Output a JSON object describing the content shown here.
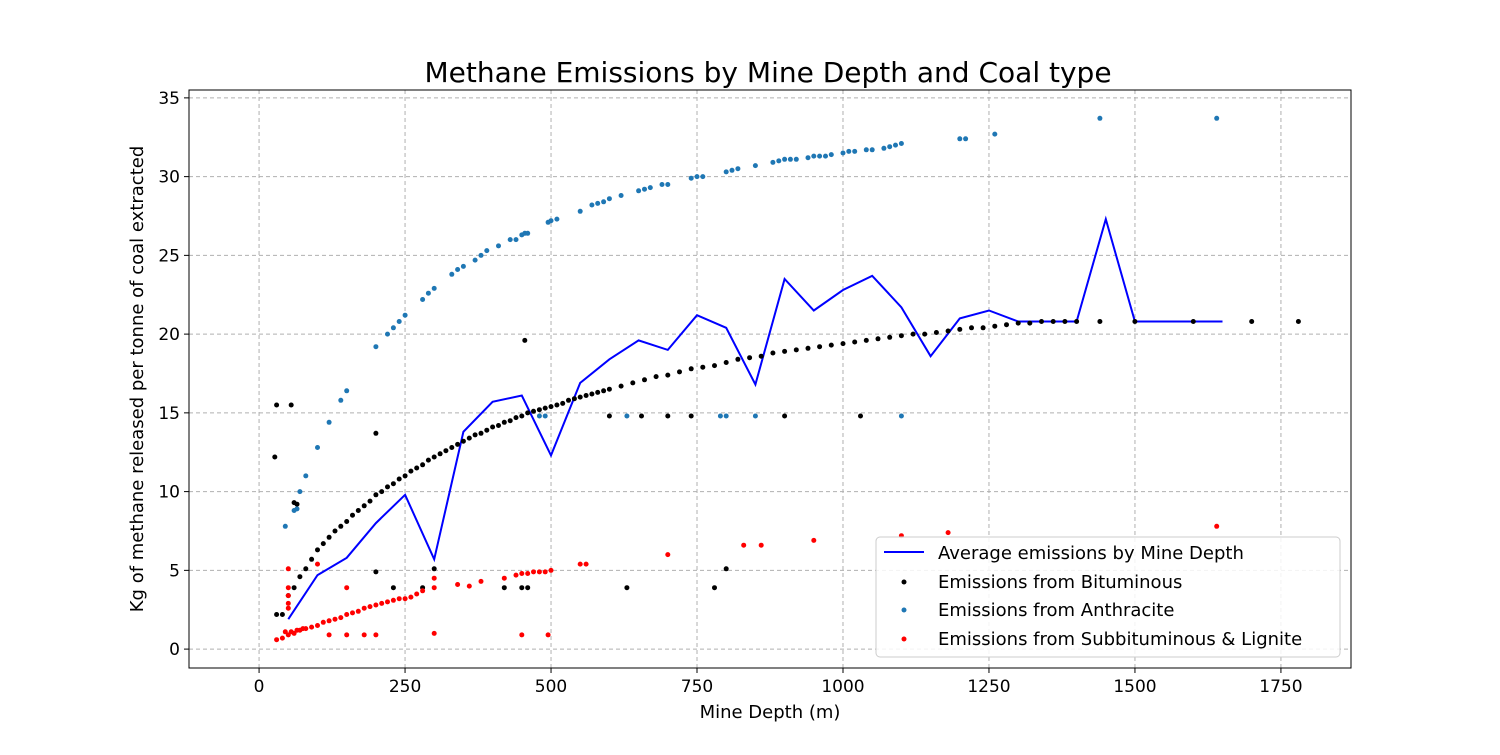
{
  "chart_data": {
    "type": "scatter",
    "title": "Methane Emissions by Mine Depth and Coal type",
    "xlabel": "Mine Depth (m)",
    "ylabel": "Kg of methane released per tonne of coal extracted",
    "xlim": [
      -120,
      1870
    ],
    "ylim": [
      -1.2,
      35.5
    ],
    "xticks": [
      0,
      250,
      500,
      750,
      1000,
      1250,
      1500,
      1750
    ],
    "yticks": [
      0,
      5,
      10,
      15,
      20,
      25,
      30,
      35
    ],
    "grid": true,
    "legend_position": "lower-right",
    "series": [
      {
        "name": "Average emissions by Mine Depth",
        "type": "line",
        "color": "#0000ff",
        "x": [
          50,
          100,
          150,
          200,
          250,
          300,
          350,
          400,
          450,
          500,
          550,
          600,
          650,
          700,
          750,
          800,
          850,
          900,
          950,
          1000,
          1050,
          1100,
          1150,
          1200,
          1250,
          1300,
          1350,
          1400,
          1450,
          1500,
          1550,
          1600,
          1650
        ],
        "y": [
          1.9,
          4.7,
          5.8,
          8.0,
          9.8,
          5.7,
          13.8,
          15.7,
          16.1,
          12.3,
          16.9,
          18.4,
          19.6,
          19.0,
          21.2,
          20.4,
          16.8,
          23.5,
          21.5,
          22.8,
          23.7,
          21.7,
          18.6,
          21.0,
          21.5,
          20.8,
          20.8,
          20.8,
          27.3,
          20.8,
          20.8,
          20.8,
          20.8
        ]
      },
      {
        "name": "Emissions from Bituminous",
        "type": "scatter",
        "color": "#000000",
        "curve": [
          [
            30,
            2.2
          ],
          [
            40,
            2.2
          ],
          [
            50,
            3.4
          ],
          [
            60,
            3.9
          ],
          [
            70,
            4.6
          ],
          [
            80,
            5.1
          ],
          [
            90,
            5.7
          ],
          [
            100,
            6.3
          ],
          [
            110,
            6.7
          ],
          [
            120,
            7.1
          ],
          [
            130,
            7.5
          ],
          [
            140,
            7.8
          ],
          [
            150,
            8.1
          ],
          [
            160,
            8.5
          ],
          [
            170,
            8.8
          ],
          [
            180,
            9.1
          ],
          [
            190,
            9.4
          ],
          [
            200,
            9.8
          ],
          [
            210,
            10.0
          ],
          [
            220,
            10.3
          ],
          [
            230,
            10.5
          ],
          [
            240,
            10.8
          ],
          [
            250,
            11.0
          ],
          [
            260,
            11.3
          ],
          [
            270,
            11.5
          ],
          [
            280,
            11.7
          ],
          [
            290,
            12.0
          ],
          [
            300,
            12.2
          ],
          [
            310,
            12.4
          ],
          [
            320,
            12.6
          ],
          [
            330,
            12.8
          ],
          [
            340,
            13.0
          ],
          [
            350,
            13.2
          ],
          [
            360,
            13.4
          ],
          [
            370,
            13.6
          ],
          [
            380,
            13.7
          ],
          [
            390,
            13.9
          ],
          [
            400,
            14.1
          ],
          [
            410,
            14.2
          ],
          [
            420,
            14.4
          ],
          [
            430,
            14.5
          ],
          [
            440,
            14.7
          ],
          [
            450,
            14.8
          ],
          [
            460,
            15.0
          ],
          [
            470,
            15.1
          ],
          [
            480,
            15.2
          ],
          [
            490,
            15.3
          ],
          [
            500,
            15.4
          ],
          [
            510,
            15.5
          ],
          [
            520,
            15.6
          ],
          [
            530,
            15.8
          ],
          [
            540,
            15.9
          ],
          [
            550,
            16.0
          ],
          [
            560,
            16.1
          ],
          [
            570,
            16.2
          ],
          [
            580,
            16.3
          ],
          [
            590,
            16.4
          ],
          [
            600,
            16.5
          ],
          [
            620,
            16.7
          ],
          [
            640,
            16.9
          ],
          [
            660,
            17.1
          ],
          [
            680,
            17.3
          ],
          [
            700,
            17.4
          ],
          [
            720,
            17.6
          ],
          [
            740,
            17.8
          ],
          [
            760,
            17.9
          ],
          [
            780,
            18.0
          ],
          [
            800,
            18.2
          ],
          [
            820,
            18.4
          ],
          [
            840,
            18.5
          ],
          [
            860,
            18.6
          ],
          [
            880,
            18.8
          ],
          [
            900,
            18.9
          ],
          [
            920,
            19.0
          ],
          [
            940,
            19.1
          ],
          [
            960,
            19.2
          ],
          [
            980,
            19.3
          ],
          [
            1000,
            19.4
          ],
          [
            1020,
            19.5
          ],
          [
            1040,
            19.6
          ],
          [
            1060,
            19.7
          ],
          [
            1080,
            19.8
          ],
          [
            1100,
            19.9
          ],
          [
            1120,
            20.0
          ],
          [
            1140,
            20.0
          ],
          [
            1160,
            20.1
          ],
          [
            1180,
            20.2
          ],
          [
            1200,
            20.3
          ],
          [
            1220,
            20.4
          ],
          [
            1240,
            20.4
          ],
          [
            1260,
            20.5
          ],
          [
            1280,
            20.6
          ],
          [
            1300,
            20.7
          ],
          [
            1320,
            20.7
          ],
          [
            1340,
            20.8
          ],
          [
            1360,
            20.8
          ],
          [
            1380,
            20.8
          ],
          [
            1400,
            20.8
          ],
          [
            1440,
            20.8
          ],
          [
            1500,
            20.8
          ],
          [
            1600,
            20.8
          ],
          [
            1700,
            20.8
          ],
          [
            1780,
            20.8
          ]
        ],
        "outliers": [
          [
            27,
            12.2
          ],
          [
            30,
            15.5
          ],
          [
            55,
            15.5
          ],
          [
            60,
            9.3
          ],
          [
            65,
            9.2
          ],
          [
            200,
            13.7
          ],
          [
            200,
            4.9
          ],
          [
            230,
            3.9
          ],
          [
            280,
            3.9
          ],
          [
            300,
            5.1
          ],
          [
            420,
            3.9
          ],
          [
            450,
            3.9
          ],
          [
            460,
            3.9
          ],
          [
            455,
            19.6
          ],
          [
            600,
            14.8
          ],
          [
            655,
            14.8
          ],
          [
            700,
            14.8
          ],
          [
            740,
            14.8
          ],
          [
            780,
            3.9
          ],
          [
            800,
            5.1
          ],
          [
            630,
            3.9
          ],
          [
            900,
            14.8
          ],
          [
            1030,
            14.8
          ]
        ]
      },
      {
        "name": "Emissions from Anthracite",
        "type": "scatter",
        "color": "#1f77b4",
        "points": [
          [
            45,
            7.8
          ],
          [
            60,
            8.8
          ],
          [
            65,
            8.9
          ],
          [
            70,
            10.0
          ],
          [
            80,
            11.0
          ],
          [
            100,
            12.8
          ],
          [
            120,
            14.4
          ],
          [
            140,
            15.8
          ],
          [
            150,
            16.4
          ],
          [
            200,
            19.2
          ],
          [
            220,
            20.0
          ],
          [
            230,
            20.4
          ],
          [
            240,
            20.8
          ],
          [
            250,
            21.2
          ],
          [
            280,
            22.2
          ],
          [
            290,
            22.6
          ],
          [
            300,
            22.9
          ],
          [
            330,
            23.8
          ],
          [
            340,
            24.1
          ],
          [
            350,
            24.3
          ],
          [
            370,
            24.7
          ],
          [
            380,
            25.0
          ],
          [
            390,
            25.3
          ],
          [
            410,
            25.6
          ],
          [
            430,
            26.0
          ],
          [
            440,
            26.0
          ],
          [
            450,
            26.3
          ],
          [
            455,
            26.4
          ],
          [
            460,
            26.4
          ],
          [
            495,
            27.1
          ],
          [
            500,
            27.2
          ],
          [
            510,
            27.3
          ],
          [
            550,
            27.8
          ],
          [
            570,
            28.2
          ],
          [
            580,
            28.3
          ],
          [
            590,
            28.4
          ],
          [
            600,
            28.6
          ],
          [
            620,
            28.8
          ],
          [
            650,
            29.1
          ],
          [
            660,
            29.2
          ],
          [
            670,
            29.3
          ],
          [
            690,
            29.5
          ],
          [
            700,
            29.5
          ],
          [
            740,
            29.9
          ],
          [
            750,
            30.0
          ],
          [
            760,
            30.0
          ],
          [
            800,
            30.3
          ],
          [
            810,
            30.4
          ],
          [
            820,
            30.5
          ],
          [
            850,
            30.7
          ],
          [
            880,
            30.9
          ],
          [
            890,
            31.0
          ],
          [
            900,
            31.1
          ],
          [
            910,
            31.1
          ],
          [
            920,
            31.1
          ],
          [
            940,
            31.2
          ],
          [
            950,
            31.3
          ],
          [
            960,
            31.3
          ],
          [
            970,
            31.3
          ],
          [
            980,
            31.4
          ],
          [
            1000,
            31.5
          ],
          [
            1010,
            31.6
          ],
          [
            1020,
            31.6
          ],
          [
            1040,
            31.7
          ],
          [
            1050,
            31.7
          ],
          [
            1070,
            31.8
          ],
          [
            1080,
            31.9
          ],
          [
            1090,
            32.0
          ],
          [
            1100,
            32.1
          ],
          [
            1200,
            32.4
          ],
          [
            1210,
            32.4
          ],
          [
            1260,
            32.7
          ],
          [
            1440,
            33.7
          ],
          [
            1640,
            33.7
          ],
          [
            480,
            14.8
          ],
          [
            490,
            14.8
          ],
          [
            630,
            14.8
          ],
          [
            790,
            14.8
          ],
          [
            800,
            14.8
          ],
          [
            850,
            14.8
          ],
          [
            1100,
            14.8
          ]
        ]
      },
      {
        "name": "Emissions from Subbituminous & Lignite",
        "type": "scatter",
        "color": "#ff0000",
        "curve": [
          [
            30,
            0.6
          ],
          [
            40,
            0.7
          ],
          [
            45,
            1.1
          ],
          [
            50,
            0.9
          ],
          [
            55,
            1.1
          ],
          [
            60,
            1.0
          ],
          [
            65,
            1.2
          ],
          [
            70,
            1.2
          ],
          [
            75,
            1.3
          ],
          [
            80,
            1.3
          ],
          [
            90,
            1.4
          ],
          [
            100,
            1.5
          ],
          [
            110,
            1.7
          ],
          [
            120,
            1.8
          ],
          [
            130,
            1.9
          ],
          [
            140,
            2.0
          ],
          [
            150,
            2.2
          ],
          [
            160,
            2.3
          ],
          [
            170,
            2.4
          ],
          [
            180,
            2.6
          ],
          [
            190,
            2.7
          ],
          [
            200,
            2.8
          ],
          [
            210,
            2.9
          ],
          [
            220,
            3.0
          ],
          [
            230,
            3.1
          ],
          [
            240,
            3.2
          ],
          [
            250,
            3.2
          ],
          [
            260,
            3.3
          ],
          [
            270,
            3.5
          ],
          [
            280,
            3.7
          ],
          [
            300,
            3.9
          ],
          [
            340,
            4.1
          ],
          [
            360,
            4.0
          ],
          [
            380,
            4.3
          ],
          [
            420,
            4.5
          ],
          [
            440,
            4.7
          ],
          [
            450,
            4.8
          ],
          [
            460,
            4.8
          ],
          [
            470,
            4.9
          ],
          [
            480,
            4.9
          ],
          [
            490,
            4.9
          ],
          [
            500,
            5.0
          ],
          [
            550,
            5.4
          ],
          [
            560,
            5.4
          ],
          [
            700,
            6.0
          ],
          [
            830,
            6.6
          ],
          [
            860,
            6.6
          ],
          [
            950,
            6.9
          ],
          [
            1180,
            7.4
          ],
          [
            1640,
            7.8
          ]
        ],
        "outliers": [
          [
            50,
            5.1
          ],
          [
            50,
            3.4
          ],
          [
            50,
            2.9
          ],
          [
            50,
            2.6
          ],
          [
            50,
            3.9
          ],
          [
            100,
            5.4
          ],
          [
            120,
            0.9
          ],
          [
            150,
            3.9
          ],
          [
            150,
            0.9
          ],
          [
            200,
            0.9
          ],
          [
            180,
            0.9
          ],
          [
            300,
            1.0
          ],
          [
            300,
            4.5
          ],
          [
            450,
            0.9
          ],
          [
            495,
            0.9
          ],
          [
            1100,
            7.2
          ]
        ]
      }
    ]
  }
}
